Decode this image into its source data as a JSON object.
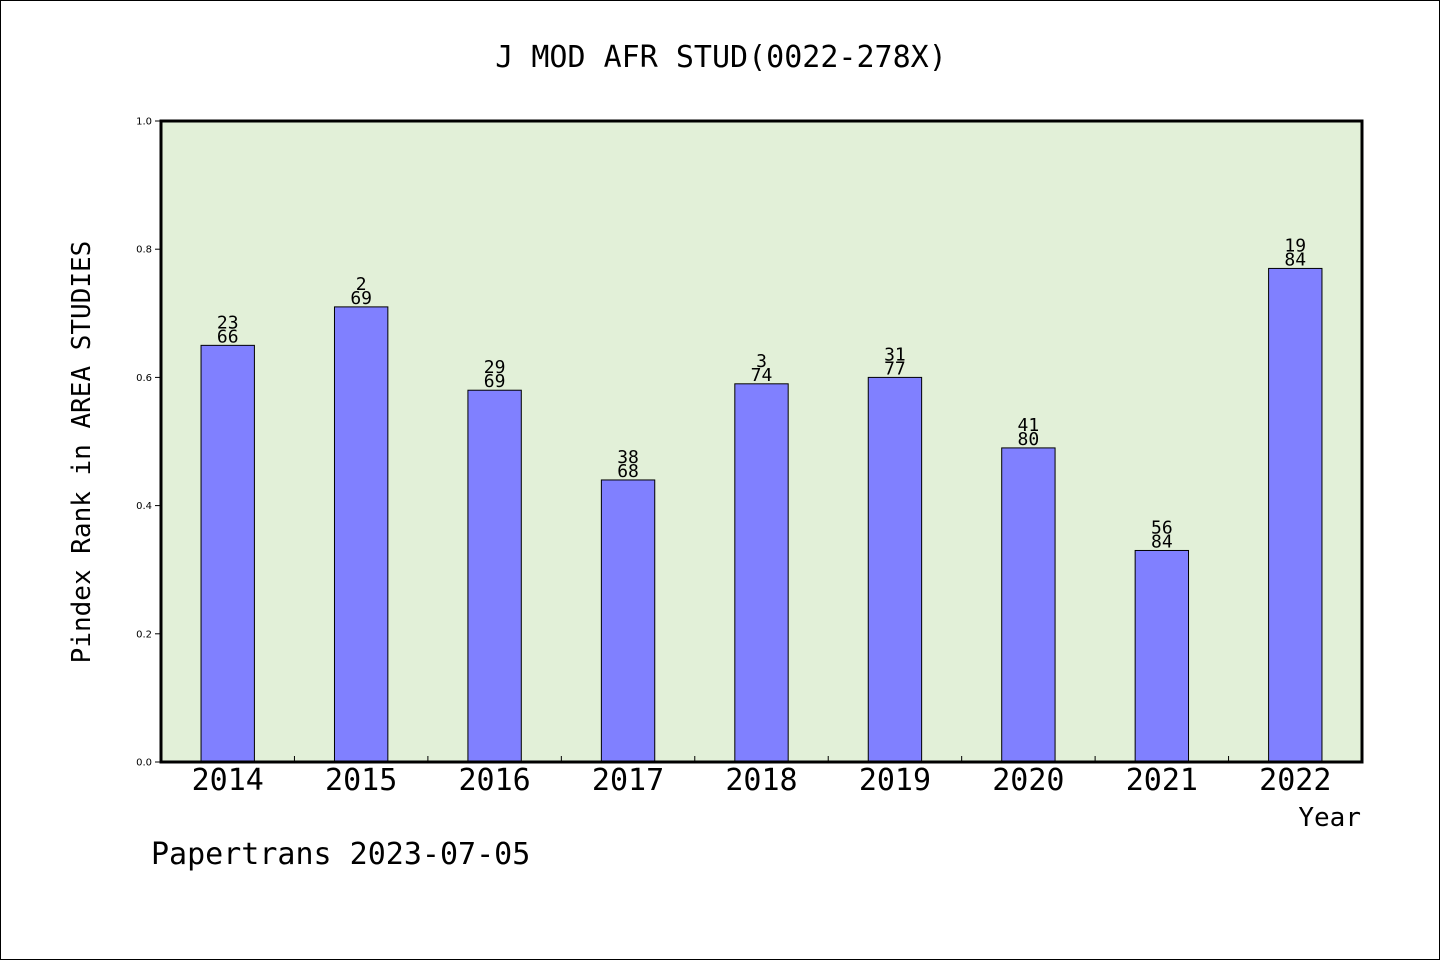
{
  "chart_data": {
    "type": "bar",
    "title": "J MOD AFR STUD(0022-278X)",
    "xlabel": "Year",
    "ylabel": "Pindex Rank in AREA STUDIES",
    "categories": [
      "2014",
      "2015",
      "2016",
      "2017",
      "2018",
      "2019",
      "2020",
      "2021",
      "2022"
    ],
    "values": [
      0.65,
      0.71,
      0.58,
      0.44,
      0.59,
      0.6,
      0.49,
      0.33,
      0.77
    ],
    "rank": [
      "23",
      "2",
      "29",
      "38",
      "3",
      "31",
      "41",
      "56",
      "19"
    ],
    "total": [
      "66",
      "69",
      "69",
      "68",
      "74",
      "77",
      "80",
      "84",
      "84"
    ],
    "ylim": [
      0,
      1.0
    ],
    "yticks": [
      "0.0",
      "0.2",
      "0.4",
      "0.6",
      "0.8",
      "1.0"
    ],
    "grid": false,
    "plot_background": "#e2f0d8",
    "bar_color": "#8080ff",
    "footer": "Papertrans 2023-07-05"
  }
}
